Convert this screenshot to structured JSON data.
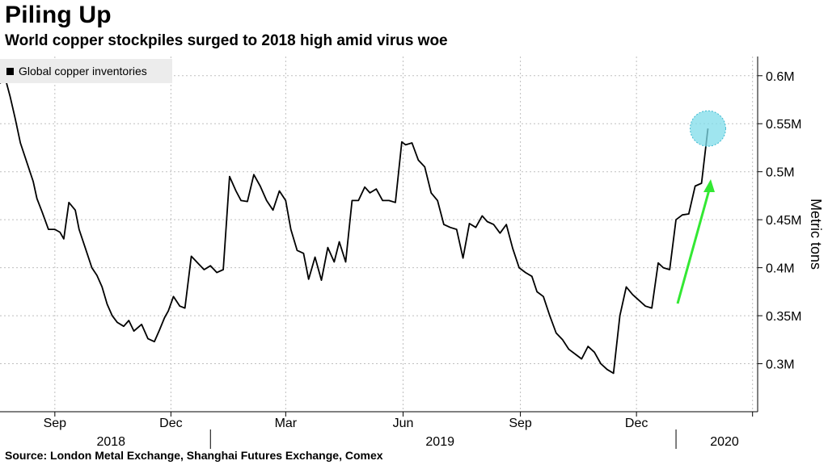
{
  "header": {
    "title": "Piling Up",
    "subtitle": "World copper stockpiles surged to 2018 high amid virus woe"
  },
  "footer": {
    "source": "Source: London Metal Exchange, Shanghai Futures Exchange, Comex"
  },
  "legend": {
    "label": "Global copper inventories"
  },
  "colors": {
    "line": "#000000",
    "arrow": "#33e833",
    "highlight": "#7fdcea",
    "grid": "#bfbfbf"
  },
  "chart_data": {
    "type": "line",
    "title": "Piling Up",
    "subtitle": "World copper stockpiles surged to 2018 high amid virus woe",
    "ylabel": "Metric tons",
    "ylim": [
      0.25,
      0.62
    ],
    "yticks": [
      "0.3M",
      "0.35M",
      "0.4M",
      "0.45M",
      "0.5M",
      "0.55M",
      "0.6M"
    ],
    "ytick_values": [
      0.3,
      0.35,
      0.4,
      0.45,
      0.5,
      0.55,
      0.6
    ],
    "xlim": [
      "2018-07-20",
      "2020-03-05"
    ],
    "xticks": [
      {
        "label": "Sep",
        "date": "2018-09-01"
      },
      {
        "label": "Dec",
        "date": "2018-12-01"
      },
      {
        "label": "Mar",
        "date": "2019-03-01"
      },
      {
        "label": "Jun",
        "date": "2019-06-01"
      },
      {
        "label": "Sep",
        "date": "2019-09-01"
      },
      {
        "label": "Dec",
        "date": "2019-12-01"
      },
      {
        "label": "",
        "date": "2020-03-01"
      }
    ],
    "year_labels": [
      {
        "label": "2018",
        "date": "2018-10-15"
      },
      {
        "label": "2019",
        "date": "2019-06-30"
      },
      {
        "label": "2020",
        "date": "2020-02-08"
      }
    ],
    "year_separators": [
      "2019-01-01",
      "2020-01-01"
    ],
    "grid": true,
    "legend_position": "top-left",
    "series": [
      {
        "name": "Global copper inventories",
        "x": [
          "2018-07-20",
          "2018-07-24",
          "2018-07-28",
          "2018-08-01",
          "2018-08-05",
          "2018-08-10",
          "2018-08-15",
          "2018-08-18",
          "2018-08-22",
          "2018-08-27",
          "2018-09-01",
          "2018-09-05",
          "2018-09-08",
          "2018-09-12",
          "2018-09-17",
          "2018-09-20",
          "2018-09-25",
          "2018-09-30",
          "2018-10-04",
          "2018-10-08",
          "2018-10-12",
          "2018-10-16",
          "2018-10-20",
          "2018-10-25",
          "2018-10-29",
          "2018-11-02",
          "2018-11-08",
          "2018-11-13",
          "2018-11-18",
          "2018-11-22",
          "2018-11-26",
          "2018-11-29",
          "2018-12-03",
          "2018-12-08",
          "2018-12-12",
          "2018-12-17",
          "2018-12-22",
          "2018-12-27",
          "2019-01-01",
          "2019-01-06",
          "2019-01-11",
          "2019-01-16",
          "2019-01-21",
          "2019-01-25",
          "2019-01-30",
          "2019-02-04",
          "2019-02-09",
          "2019-02-14",
          "2019-02-19",
          "2019-02-24",
          "2019-03-01",
          "2019-03-05",
          "2019-03-10",
          "2019-03-15",
          "2019-03-19",
          "2019-03-24",
          "2019-03-29",
          "2019-04-03",
          "2019-04-08",
          "2019-04-12",
          "2019-04-17",
          "2019-04-22",
          "2019-04-27",
          "2019-05-02",
          "2019-05-06",
          "2019-05-11",
          "2019-05-16",
          "2019-05-21",
          "2019-05-26",
          "2019-05-31",
          "2019-06-03",
          "2019-06-08",
          "2019-06-13",
          "2019-06-18",
          "2019-06-23",
          "2019-06-28",
          "2019-07-03",
          "2019-07-08",
          "2019-07-13",
          "2019-07-18",
          "2019-07-23",
          "2019-07-28",
          "2019-08-02",
          "2019-08-06",
          "2019-08-11",
          "2019-08-16",
          "2019-08-21",
          "2019-08-26",
          "2019-08-31",
          "2019-09-05",
          "2019-09-10",
          "2019-09-14",
          "2019-09-19",
          "2019-09-24",
          "2019-09-29",
          "2019-10-04",
          "2019-10-09",
          "2019-10-14",
          "2019-10-19",
          "2019-10-24",
          "2019-10-29",
          "2019-11-03",
          "2019-11-08",
          "2019-11-13",
          "2019-11-18",
          "2019-11-23",
          "2019-11-28",
          "2019-12-03",
          "2019-12-08",
          "2019-12-13",
          "2019-12-18",
          "2019-12-22",
          "2019-12-27",
          "2020-01-01",
          "2020-01-06",
          "2020-01-11",
          "2020-01-16",
          "2020-01-21",
          "2020-01-26",
          "2020-01-31",
          "2020-02-05",
          "2020-02-10",
          "2020-02-15",
          "2020-02-20",
          "2020-02-25"
        ],
        "values": [
          0.592,
          0.598,
          0.578,
          0.555,
          0.53,
          0.51,
          0.49,
          0.472,
          0.458,
          0.44,
          0.44,
          0.437,
          0.43,
          0.468,
          0.46,
          0.44,
          0.42,
          0.4,
          0.392,
          0.38,
          0.362,
          0.35,
          0.343,
          0.339,
          0.345,
          0.334,
          0.341,
          0.326,
          0.323,
          0.335,
          0.348,
          0.355,
          0.37,
          0.36,
          0.358,
          0.412,
          0.405,
          0.398,
          0.402,
          0.395,
          0.398,
          0.495,
          0.48,
          0.47,
          0.469,
          0.497,
          0.485,
          0.47,
          0.46,
          0.48,
          0.47,
          0.44,
          0.418,
          0.415,
          0.388,
          0.411,
          0.387,
          0.421,
          0.406,
          0.427,
          0.406,
          0.47,
          0.47,
          0.484,
          0.478,
          0.482,
          0.47,
          0.47,
          0.468,
          0.531,
          0.528,
          0.53,
          0.512,
          0.505,
          0.478,
          0.47,
          0.445,
          0.442,
          0.44,
          0.41,
          0.446,
          0.442,
          0.454,
          0.448,
          0.445,
          0.436,
          0.445,
          0.42,
          0.4,
          0.395,
          0.391,
          0.375,
          0.37,
          0.35,
          0.332,
          0.325,
          0.315,
          0.31,
          0.305,
          0.318,
          0.312,
          0.3,
          0.294,
          0.29,
          0.35,
          0.38,
          0.372,
          0.366,
          0.36,
          0.358,
          0.405,
          0.4,
          0.398,
          0.45,
          0.455,
          0.456,
          0.485,
          0.488,
          0.545,
          0.545,
          0.545,
          0.545,
          0.545,
          0.545,
          0.545
        ],
        "color": "#000000"
      }
    ]
  }
}
